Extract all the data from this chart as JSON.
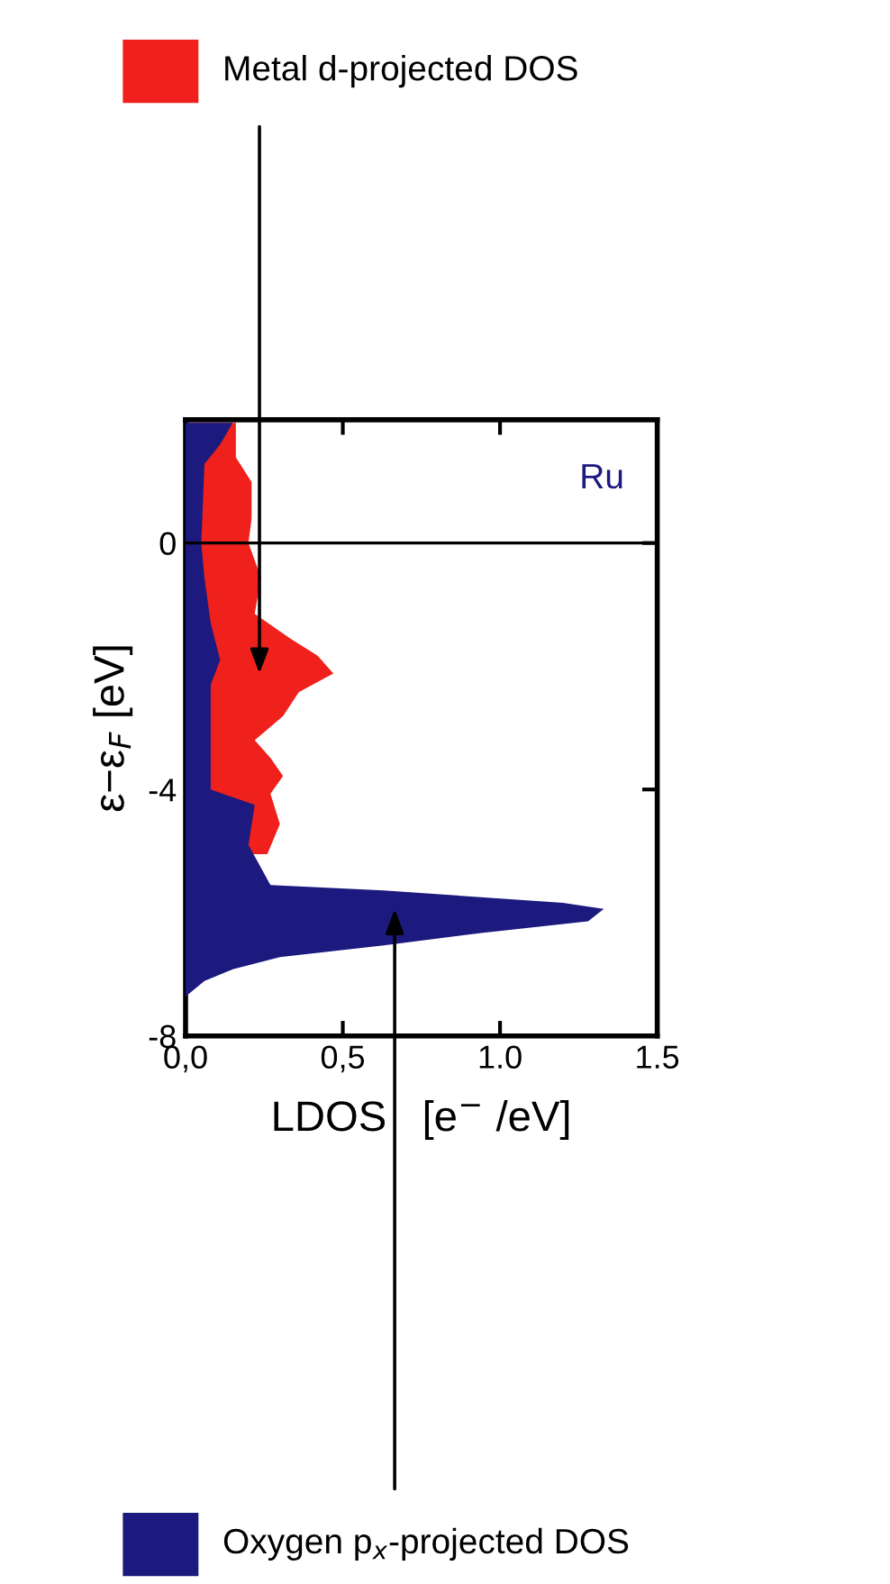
{
  "chart_data": {
    "type": "area",
    "orientation": "horizontal",
    "xlabel": "LDOS   [e$^{−}$ /eV]",
    "ylabel": "ε−ε$_{F}$ [eV]",
    "annotations": [
      "Ru"
    ],
    "xlim": [
      0,
      1.5
    ],
    "xticks": [
      {
        "value": 0,
        "label": "0,0"
      },
      {
        "value": 0.5,
        "label": "0,5"
      },
      {
        "value": 1.0,
        "label": "1.0"
      },
      {
        "value": 1.5,
        "label": "1.5"
      }
    ],
    "ylim": [
      -8,
      2
    ],
    "yticks": [
      {
        "value": -8,
        "label": "-8"
      },
      {
        "value": -4,
        "label": "-4"
      },
      {
        "value": 0,
        "label": "0"
      }
    ],
    "ref_lines": [
      {
        "axis": "y",
        "value": 0,
        "label": null,
        "color": "#000000"
      }
    ],
    "legend": "left",
    "grid": false,
    "series": [
      {
        "name": "Metal d-projected DOS",
        "color": "#f0201c",
        "x": [
          1.95,
          1.39,
          0.99,
          0.4,
          0,
          -0.56,
          -1.15,
          -1.54,
          -1.83,
          -2.12,
          -2.42,
          -2.81,
          -3.2,
          -3.49,
          -3.78,
          -4.07,
          -4.56,
          -5.05
        ],
        "values": [
          0.16,
          0.16,
          0.21,
          0.21,
          0.2,
          0.24,
          0.22,
          0.33,
          0.42,
          0.47,
          0.36,
          0.31,
          0.22,
          0.27,
          0.31,
          0.27,
          0.3,
          0.26
        ]
      },
      {
        "name": "Oxygen p$_{x}$-projected DOS",
        "color": "#1c1a7e",
        "x": [
          1.95,
          1.6,
          1.28,
          0,
          -0.56,
          -1.3,
          -1.9,
          -2.3,
          -2.9,
          -4.0,
          -4.25,
          -4.9,
          -5.55,
          -5.64,
          -5.84,
          -5.94,
          -6.14,
          -6.33,
          -6.53,
          -6.72,
          -6.92,
          -7.11,
          -7.36
        ],
        "values": [
          0.15,
          0.11,
          0.06,
          0.05,
          0.06,
          0.08,
          0.11,
          0.08,
          0.08,
          0.08,
          0.22,
          0.2,
          0.27,
          0.63,
          1.2,
          1.33,
          1.28,
          0.94,
          0.63,
          0.3,
          0.15,
          0.06,
          0.0
        ]
      }
    ]
  }
}
